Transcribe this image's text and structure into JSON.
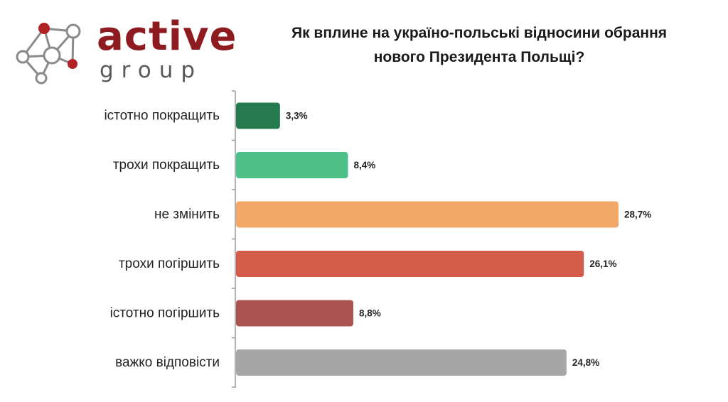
{
  "logo": {
    "word": "active",
    "sub": "group",
    "colors": {
      "primary": "#8e1b1f",
      "secondary": "#58595b",
      "node": "#b22222"
    }
  },
  "title_lines": [
    "Як вплине на україно-польські відносини обрання",
    "нового Президента Польщі?"
  ],
  "chart_data": {
    "type": "bar",
    "orientation": "horizontal",
    "title": "Як вплине на україно-польські відносини обрання нового Президента Польщі?",
    "categories": [
      "істотно покращить",
      "трохи покращить",
      "не змінить",
      "трохи погіршить",
      "істотно погіршить",
      "важко відповісти"
    ],
    "values": [
      3.3,
      8.4,
      28.7,
      26.1,
      8.8,
      24.8
    ],
    "value_labels": [
      "3,3%",
      "8,4%",
      "28,7%",
      "26,1%",
      "8,8%",
      "24,8%"
    ],
    "colors": [
      "#267a4f",
      "#4dbf88",
      "#f2a968",
      "#d45c4a",
      "#a8534f",
      "#a6a6a6"
    ],
    "xlim": [
      0,
      30
    ],
    "unit": "%",
    "grid": false,
    "legend": "none"
  }
}
